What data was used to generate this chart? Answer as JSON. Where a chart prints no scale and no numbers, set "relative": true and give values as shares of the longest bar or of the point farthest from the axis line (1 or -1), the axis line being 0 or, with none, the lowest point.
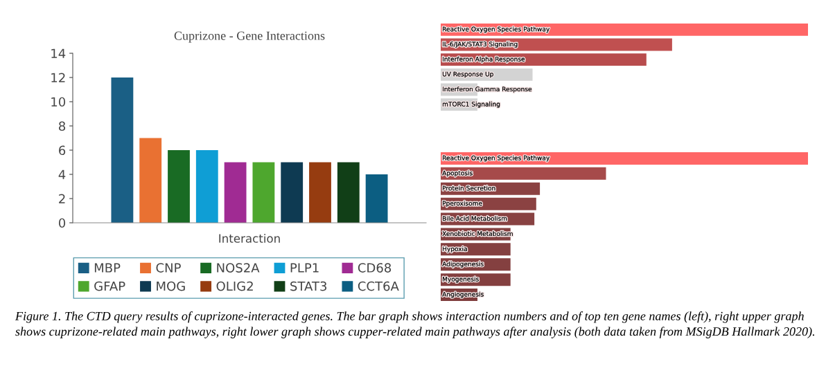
{
  "chart_data": [
    {
      "type": "bar",
      "title": "Cuprizone - Gene Interactions",
      "xlabel": "Interaction",
      "categories": [
        null
      ],
      "ylim": [
        0,
        14
      ],
      "yticks": [
        0,
        2,
        4,
        6,
        8,
        10,
        12,
        14
      ],
      "legend": "bottom",
      "series": [
        {
          "name": "MBP",
          "color": "#1a5f85",
          "values": [
            12
          ]
        },
        {
          "name": "CNP",
          "color": "#e97132",
          "values": [
            7
          ]
        },
        {
          "name": "NOS2A",
          "color": "#196b24",
          "values": [
            6
          ]
        },
        {
          "name": "PLP1",
          "color": "#0f9ed5",
          "values": [
            6
          ]
        },
        {
          "name": "CD68",
          "color": "#a02b93",
          "values": [
            5
          ]
        },
        {
          "name": "GFAP",
          "color": "#4ea72e",
          "values": [
            5
          ]
        },
        {
          "name": "MOG",
          "color": "#0e3a52",
          "values": [
            5
          ]
        },
        {
          "name": "OLIG2",
          "color": "#963c10",
          "values": [
            5
          ]
        },
        {
          "name": "STAT3",
          "color": "#113f17",
          "values": [
            5
          ]
        },
        {
          "name": "CCT6A",
          "color": "#0c5e82",
          "values": [
            4
          ]
        }
      ],
      "annotations": [
        "Figure 1. The CTD query results of cuprizone-interacted genes. The bar graph shows interaction numbers and of top ten gene names (left), right upper graph shows cuprizone-related main pathways, right lower graph shows cupper-related main pathways after analysis (both data taken from MSigDB Hallmark 2020)."
      ]
    },
    {
      "type": "bar",
      "orientation": "horizontal",
      "relative": true,
      "categories": [
        "Reactive Oxygen Species Pathway",
        "IL-6/JAK/STAT3 Signaling",
        "Interferon Alpha Response",
        "UV Response Up",
        "Interferon Gamma Response",
        "mTORC1 Signaling"
      ],
      "values": [
        1,
        0.63,
        0.56,
        0.25,
        0.1,
        0.1
      ],
      "colors": [
        "#ff6666",
        "#c05050",
        "#b84c4d",
        "#d3d3d3",
        "#d3d3d3",
        "#d3d3d3"
      ]
    },
    {
      "type": "bar",
      "orientation": "horizontal",
      "relative": true,
      "categories": [
        "Reactive Oxygen Species Pathway",
        "Apoptosis",
        "Protein Secretion",
        "Pperoxisome",
        "Bile Acid Metabolism",
        "Xenobiotic Metabolism",
        "Hypoxia",
        "Adipogenesis",
        "Myogenesis",
        "Angiogenesis"
      ],
      "values": [
        1,
        0.45,
        0.27,
        0.26,
        0.255,
        0.19,
        0.19,
        0.19,
        0.19,
        0.1
      ],
      "colors": [
        "#ff6666",
        "#a64a4a",
        "#8b4242",
        "#8b4242",
        "#884242",
        "#844040",
        "#844040",
        "#844040",
        "#844040",
        "#7f3d3d"
      ]
    }
  ]
}
